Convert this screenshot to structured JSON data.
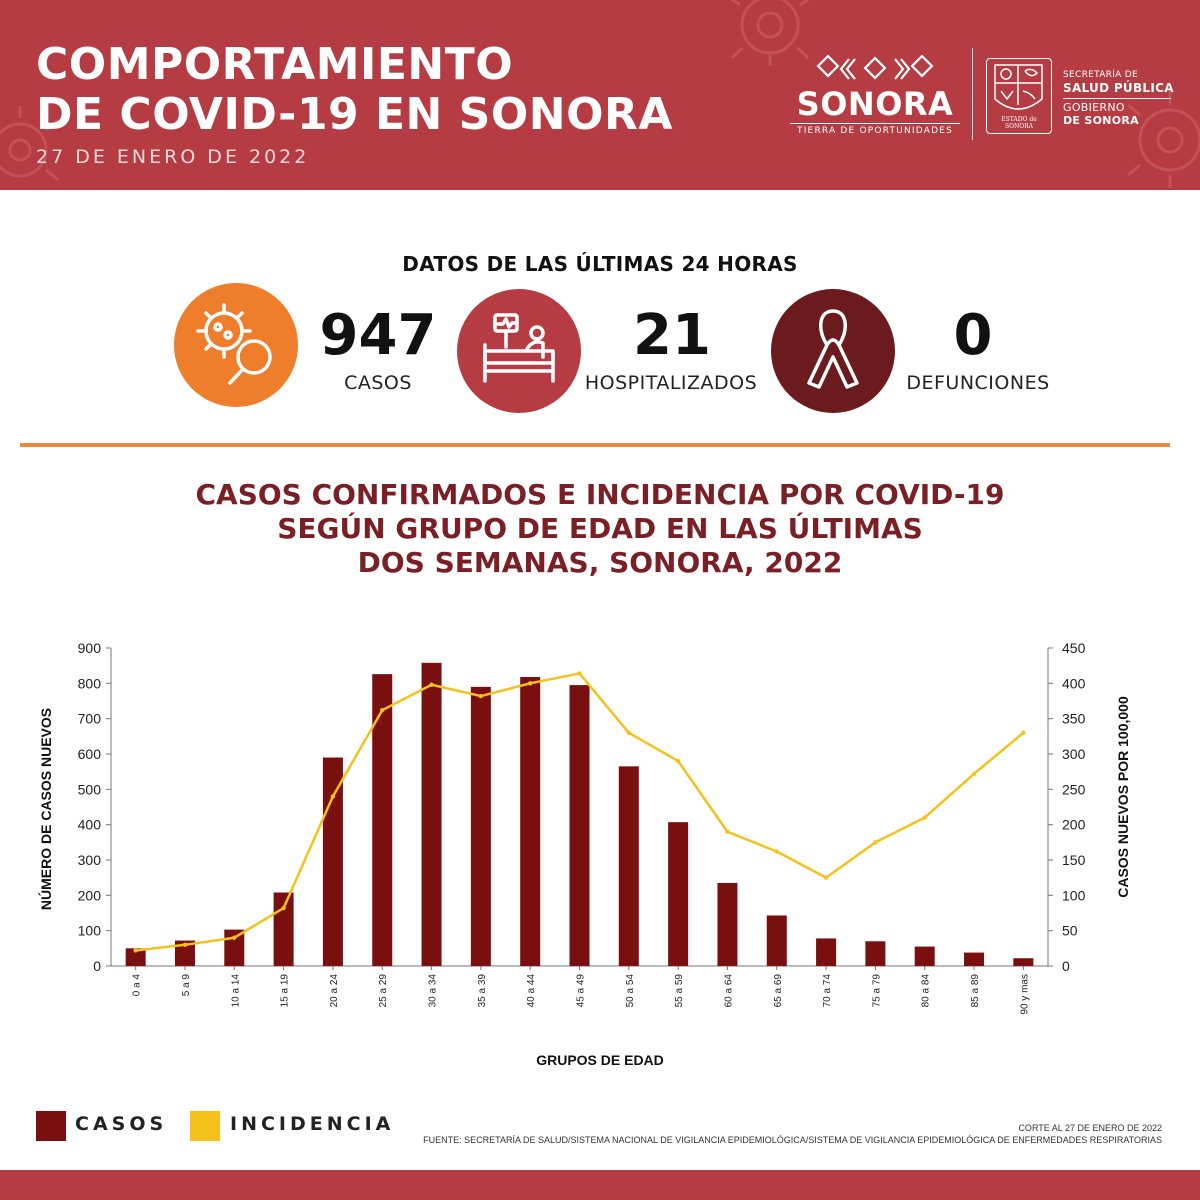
{
  "header": {
    "title_line1": "COMPORTAMIENTO",
    "title_line2": "DE COVID-19 EN SONORA",
    "date": "27 DE ENERO DE 2022",
    "logo_word": "SONORA",
    "logo_tag": "TIERRA DE OPORTUNIDADES",
    "seal_caption": "ESTADO de SONORA",
    "gov_line1": "SECRETARÍA DE",
    "gov_line2": "SALUD PÚBLICA",
    "gov_line3": "GOBIERNO",
    "gov_line4": "DE SONORA",
    "icon_logo": "sonora-logo-icon",
    "icon_seal": "state-seal-icon"
  },
  "stats": {
    "title": "DATOS DE LAS ÚLTIMAS 24 HORAS",
    "cases": {
      "value": "947",
      "label": "CASOS",
      "icon": "virus-magnifier-icon",
      "color": "#ee7d2c"
    },
    "hospitalized": {
      "value": "21",
      "label": "HOSPITALIZADOS",
      "icon": "hospital-bed-icon",
      "color": "#b53c43"
    },
    "deaths": {
      "value": "0",
      "label": "DEFUNCIONES",
      "icon": "ribbon-icon",
      "color": "#6b1a1d"
    }
  },
  "chart_title": {
    "line1": "CASOS CONFIRMADOS E INCIDENCIA POR COVID-19",
    "line2": "SEGÚN GRUPO DE EDAD EN LAS ÚLTIMAS",
    "line3": "DOS SEMANAS, SONORA, 2022"
  },
  "chart_data": {
    "type": "bar",
    "categories": [
      "0 a 4",
      "5 a 9",
      "10 a 14",
      "15 a 19",
      "20 a 24",
      "25 a 29",
      "30 a 34",
      "35 a 39",
      "40 a 44",
      "45 a 49",
      "50 a 54",
      "55 a 59",
      "60 a 64",
      "65 a 69",
      "70 a 74",
      "75 a 79",
      "80 a 84",
      "85 a 89",
      "90 y mas"
    ],
    "series": [
      {
        "name": "CASOS",
        "type": "bar",
        "axis": "left",
        "color": "#7a0f10",
        "values": [
          50,
          72,
          103,
          208,
          590,
          826,
          858,
          790,
          818,
          795,
          565,
          407,
          235,
          143,
          78,
          70,
          55,
          38,
          22
        ]
      },
      {
        "name": "INCIDENCIA",
        "type": "line",
        "axis": "right",
        "color": "#f5c21b",
        "values": [
          22,
          30,
          40,
          82,
          240,
          362,
          398,
          382,
          400,
          414,
          330,
          290,
          190,
          162,
          125,
          175,
          210,
          272,
          330
        ]
      }
    ],
    "xlabel": "GRUPOS DE EDAD",
    "ylabel": "NÚMERO DE CASOS NUEVOS",
    "y2label": "CASOS  NUEVOS  POR 100,000",
    "ylim": [
      0,
      900
    ],
    "y2lim": [
      0,
      450
    ],
    "yticks": [
      0,
      100,
      200,
      300,
      400,
      500,
      600,
      700,
      800,
      900
    ],
    "y2ticks": [
      0,
      50,
      100,
      150,
      200,
      250,
      300,
      350,
      400,
      450
    ],
    "grid": false,
    "legend_placement": "bottom-left"
  },
  "legend": {
    "cases_label": "CASOS",
    "incidence_label": "INCIDENCIA",
    "cases_color": "#7a0f10",
    "incidence_color": "#f5c21b"
  },
  "footer": {
    "cutoff": "CORTE AL 27 DE ENERO DE 2022",
    "source": "FUENTE: SECRETARÍA DE SALUD/SISTEMA NACIONAL DE VIGILANCIA EPIDEMIOLÓGICA/SISTEMA DE VIGILANCIA EPIDEMIOLÓGICA DE ENFERMEDADES RESPIRATORIAS"
  }
}
